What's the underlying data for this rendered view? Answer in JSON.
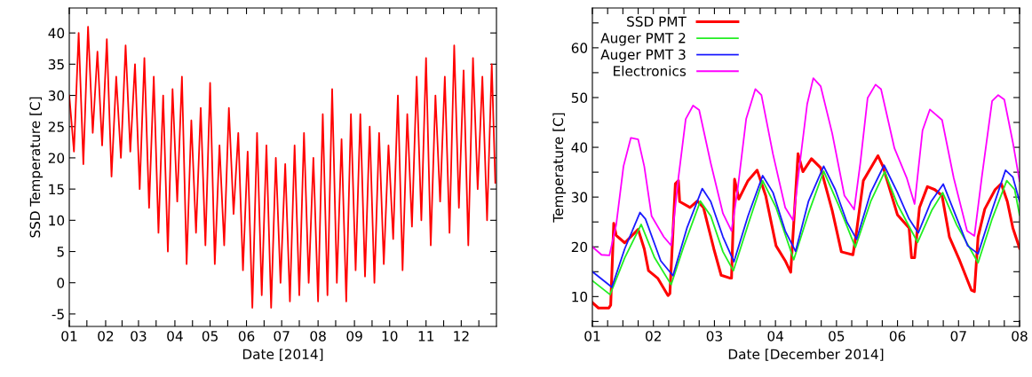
{
  "chart_data": [
    {
      "type": "line",
      "xlabel": "Date [2014]",
      "ylabel": "SSD Temperature [C]",
      "grid": false,
      "legend": false,
      "marker": "none",
      "line_style": "solid",
      "xlim": [
        "2014-01-01",
        "2014-12-31"
      ],
      "ylim": [
        -7,
        44
      ],
      "xticks": [
        {
          "value": "2014-01-01",
          "label": "01"
        },
        {
          "value": "2014-01-16",
          "label": null
        },
        {
          "value": "2014-02-01",
          "label": "02"
        },
        {
          "value": "2014-02-15",
          "label": null
        },
        {
          "value": "2014-03-01",
          "label": "03"
        },
        {
          "value": "2014-03-16",
          "label": null
        },
        {
          "value": "2014-04-01",
          "label": "04"
        },
        {
          "value": "2014-04-16",
          "label": null
        },
        {
          "value": "2014-05-01",
          "label": "05"
        },
        {
          "value": "2014-05-16",
          "label": null
        },
        {
          "value": "2014-06-01",
          "label": "06"
        },
        {
          "value": "2014-06-16",
          "label": null
        },
        {
          "value": "2014-07-01",
          "label": "07"
        },
        {
          "value": "2014-07-16",
          "label": null
        },
        {
          "value": "2014-08-01",
          "label": "08"
        },
        {
          "value": "2014-08-16",
          "label": null
        },
        {
          "value": "2014-09-01",
          "label": "09"
        },
        {
          "value": "2014-09-16",
          "label": null
        },
        {
          "value": "2014-10-01",
          "label": "10"
        },
        {
          "value": "2014-10-16",
          "label": null
        },
        {
          "value": "2014-11-01",
          "label": "11"
        },
        {
          "value": "2014-11-16",
          "label": null
        },
        {
          "value": "2014-12-01",
          "label": "12"
        },
        {
          "value": "2014-12-16",
          "label": null
        }
      ],
      "yticks": [
        -5,
        0,
        5,
        10,
        15,
        20,
        25,
        30,
        35,
        40
      ],
      "x": [
        "2014-01-01",
        "2014-01-05",
        "2014-01-09",
        "2014-01-13",
        "2014-01-17",
        "2014-01-21",
        "2014-01-25",
        "2014-01-29",
        "2014-02-02",
        "2014-02-06",
        "2014-02-10",
        "2014-02-14",
        "2014-02-18",
        "2014-02-22",
        "2014-02-26",
        "2014-03-02",
        "2014-03-06",
        "2014-03-10",
        "2014-03-14",
        "2014-03-18",
        "2014-03-22",
        "2014-03-26",
        "2014-03-30",
        "2014-04-03",
        "2014-04-07",
        "2014-04-11",
        "2014-04-15",
        "2014-04-19",
        "2014-04-23",
        "2014-04-27",
        "2014-05-01",
        "2014-05-05",
        "2014-05-09",
        "2014-05-13",
        "2014-05-17",
        "2014-05-21",
        "2014-05-25",
        "2014-05-29",
        "2014-06-02",
        "2014-06-06",
        "2014-06-10",
        "2014-06-14",
        "2014-06-18",
        "2014-06-22",
        "2014-06-26",
        "2014-06-30",
        "2014-07-04",
        "2014-07-08",
        "2014-07-12",
        "2014-07-16",
        "2014-07-20",
        "2014-07-24",
        "2014-07-28",
        "2014-08-01",
        "2014-08-05",
        "2014-08-09",
        "2014-08-13",
        "2014-08-17",
        "2014-08-21",
        "2014-08-25",
        "2014-08-29",
        "2014-09-02",
        "2014-09-06",
        "2014-09-10",
        "2014-09-14",
        "2014-09-18",
        "2014-09-22",
        "2014-09-26",
        "2014-09-30",
        "2014-10-04",
        "2014-10-08",
        "2014-10-12",
        "2014-10-16",
        "2014-10-20",
        "2014-10-24",
        "2014-10-28",
        "2014-11-01",
        "2014-11-05",
        "2014-11-09",
        "2014-11-13",
        "2014-11-17",
        "2014-11-21",
        "2014-11-25",
        "2014-11-29",
        "2014-12-03",
        "2014-12-07",
        "2014-12-11",
        "2014-12-15",
        "2014-12-19",
        "2014-12-23",
        "2014-12-27",
        "2014-12-30"
      ],
      "series": [
        {
          "color": "#ff0000",
          "values": [
            30,
            21,
            40,
            19,
            41,
            24,
            37,
            22,
            39,
            17,
            33,
            20,
            38,
            21,
            35,
            15,
            36,
            12,
            33,
            8,
            30,
            5,
            31,
            13,
            33,
            3,
            26,
            8,
            28,
            6,
            32,
            3,
            22,
            6,
            28,
            11,
            24,
            2,
            21,
            -4,
            24,
            -2,
            22,
            -4,
            20,
            0,
            19,
            -3,
            22,
            -2,
            24,
            0,
            20,
            -3,
            27,
            -2,
            31,
            0,
            23,
            -3,
            27,
            2,
            27,
            1,
            25,
            0,
            24,
            3,
            22,
            7,
            30,
            2,
            27,
            9,
            33,
            10,
            36,
            6,
            30,
            13,
            33,
            8,
            38,
            12,
            34,
            6,
            36,
            15,
            33,
            10,
            35,
            16
          ]
        }
      ]
    },
    {
      "type": "line",
      "xlabel": "Date [December 2014]",
      "ylabel": "Temperature [C]",
      "grid": false,
      "legend": "top left",
      "marker": "none",
      "line_style": "solid",
      "xlim": [
        1,
        8
      ],
      "ylim": [
        4,
        68
      ],
      "xticks": [
        {
          "value": 1,
          "label": "01"
        },
        {
          "value": 1.25,
          "label": null
        },
        {
          "value": 1.5,
          "label": null
        },
        {
          "value": 1.75,
          "label": null
        },
        {
          "value": 2,
          "label": "02"
        },
        {
          "value": 2.25,
          "label": null
        },
        {
          "value": 2.5,
          "label": null
        },
        {
          "value": 2.75,
          "label": null
        },
        {
          "value": 3,
          "label": "03"
        },
        {
          "value": 3.25,
          "label": null
        },
        {
          "value": 3.5,
          "label": null
        },
        {
          "value": 3.75,
          "label": null
        },
        {
          "value": 4,
          "label": "04"
        },
        {
          "value": 4.25,
          "label": null
        },
        {
          "value": 4.5,
          "label": null
        },
        {
          "value": 4.75,
          "label": null
        },
        {
          "value": 5,
          "label": "05"
        },
        {
          "value": 5.25,
          "label": null
        },
        {
          "value": 5.5,
          "label": null
        },
        {
          "value": 5.75,
          "label": null
        },
        {
          "value": 6,
          "label": "06"
        },
        {
          "value": 6.25,
          "label": null
        },
        {
          "value": 6.5,
          "label": null
        },
        {
          "value": 6.75,
          "label": null
        },
        {
          "value": 7,
          "label": "07"
        },
        {
          "value": 7.25,
          "label": null
        },
        {
          "value": 7.5,
          "label": null
        },
        {
          "value": 7.75,
          "label": null
        },
        {
          "value": 8,
          "label": "08"
        }
      ],
      "yticks": [
        {
          "value": 5,
          "label": null
        },
        10,
        {
          "value": 15,
          "label": null
        },
        20,
        {
          "value": 25,
          "label": null
        },
        30,
        {
          "value": 35,
          "label": null
        },
        40,
        {
          "value": 45,
          "label": null
        },
        50,
        {
          "value": 55,
          "label": null
        },
        60,
        {
          "value": 65,
          "label": null
        }
      ],
      "series": [
        {
          "name": "SSD PMT",
          "color": "#ff0000",
          "x": [
            1.0,
            1.1,
            1.27,
            1.3,
            1.35,
            1.39,
            1.53,
            1.75,
            1.85,
            1.92,
            2.07,
            2.24,
            2.27,
            2.36,
            2.41,
            2.43,
            2.6,
            2.72,
            2.82,
            2.99,
            3.11,
            3.26,
            3.28,
            3.33,
            3.4,
            3.55,
            3.7,
            3.84,
            4.01,
            4.16,
            4.25,
            4.37,
            4.45,
            4.59,
            4.74,
            4.93,
            5.08,
            5.27,
            5.33,
            5.44,
            5.68,
            5.76,
            6.0,
            6.19,
            6.23,
            6.28,
            6.36,
            6.49,
            6.61,
            6.73,
            6.85,
            7.02,
            7.21,
            7.26,
            7.32,
            7.43,
            7.6,
            7.7,
            7.8,
            7.89,
            8.0
          ],
          "values": [
            8.8,
            7.7,
            7.7,
            8.3,
            24.7,
            22.3,
            20.8,
            23.5,
            19.6,
            15.2,
            13.7,
            10.2,
            10.6,
            32.7,
            33.3,
            29.1,
            27.9,
            29.2,
            27.9,
            19.6,
            14.3,
            13.7,
            13.7,
            33.6,
            29.6,
            33.3,
            35.4,
            30.3,
            20.2,
            17.2,
            14.9,
            38.7,
            35.1,
            37.7,
            35.9,
            27.3,
            19.0,
            18.4,
            23.2,
            33.3,
            38.3,
            36.2,
            26.4,
            23.8,
            17.8,
            17.8,
            27.9,
            32.1,
            31.5,
            30.3,
            22.0,
            17.2,
            11.3,
            11.0,
            22.0,
            27.6,
            31.5,
            32.7,
            29.1,
            23.8,
            19.7
          ]
        },
        {
          "name": "Auger PMT 2",
          "color": "#22ee22",
          "x": [
            1.0,
            1.29,
            1.53,
            1.8,
            2.02,
            2.29,
            2.5,
            2.77,
            2.94,
            3.14,
            3.31,
            3.55,
            3.79,
            4.01,
            4.3,
            4.54,
            4.79,
            5.03,
            5.31,
            5.56,
            5.79,
            6.0,
            6.33,
            6.56,
            6.74,
            6.97,
            7.32,
            7.55,
            7.79,
            7.92,
            8.0
          ],
          "values": [
            13.2,
            10.4,
            17.8,
            24.5,
            17.8,
            12.4,
            20.2,
            29.2,
            26.2,
            19.0,
            15.2,
            24.4,
            33.3,
            27.9,
            17.4,
            26.7,
            35.2,
            28.5,
            19.9,
            29.1,
            35.1,
            28.5,
            20.9,
            27.3,
            30.9,
            24.4,
            16.8,
            25.6,
            33.3,
            31.5,
            26.4
          ]
        },
        {
          "name": "Auger PMT 3",
          "color": "#1a1aff",
          "x": [
            1.0,
            1.32,
            1.53,
            1.78,
            1.87,
            2.12,
            2.32,
            2.55,
            2.8,
            2.94,
            3.14,
            3.32,
            3.55,
            3.79,
            3.96,
            4.16,
            4.33,
            4.54,
            4.79,
            4.98,
            5.17,
            5.33,
            5.56,
            5.78,
            6.0,
            6.19,
            6.34,
            6.55,
            6.75,
            6.94,
            7.15,
            7.32,
            7.55,
            7.77,
            7.89,
            8.0
          ],
          "values": [
            15.0,
            11.9,
            19.6,
            26.9,
            25.6,
            17.2,
            14.2,
            23.8,
            31.7,
            29.1,
            22.0,
            17.0,
            26.2,
            34.3,
            30.9,
            23.2,
            19.1,
            29.1,
            36.2,
            31.5,
            25.0,
            21.5,
            30.9,
            36.4,
            30.9,
            25.6,
            22.8,
            29.1,
            32.6,
            26.7,
            20.2,
            18.6,
            27.4,
            35.4,
            34.0,
            29.1
          ]
        },
        {
          "name": "Electronics",
          "color": "#ff00ff",
          "x": [
            1.0,
            1.15,
            1.28,
            1.39,
            1.51,
            1.63,
            1.75,
            1.85,
            1.97,
            2.17,
            2.29,
            2.41,
            2.53,
            2.65,
            2.75,
            2.94,
            3.14,
            3.28,
            3.38,
            3.52,
            3.67,
            3.77,
            3.96,
            4.16,
            4.29,
            4.4,
            4.52,
            4.62,
            4.74,
            4.93,
            5.13,
            5.29,
            5.39,
            5.51,
            5.64,
            5.73,
            5.95,
            6.15,
            6.28,
            6.41,
            6.53,
            6.73,
            6.92,
            7.14,
            7.26,
            7.38,
            7.55,
            7.65,
            7.75,
            7.89,
            8.0
          ],
          "values": [
            20.0,
            18.4,
            18.3,
            24.4,
            36.2,
            41.9,
            41.6,
            36.2,
            26.2,
            22.0,
            20.3,
            33.9,
            45.7,
            48.4,
            47.5,
            36.8,
            26.7,
            23.2,
            31.5,
            45.7,
            51.7,
            50.5,
            38.6,
            27.9,
            25.3,
            36.8,
            48.7,
            53.9,
            52.3,
            42.8,
            30.3,
            27.5,
            36.8,
            49.9,
            52.6,
            51.7,
            39.8,
            33.9,
            28.6,
            43.4,
            47.6,
            45.5,
            33.9,
            23.2,
            22.2,
            33.9,
            49.3,
            50.5,
            49.6,
            41.0,
            33.2
          ]
        }
      ]
    }
  ]
}
